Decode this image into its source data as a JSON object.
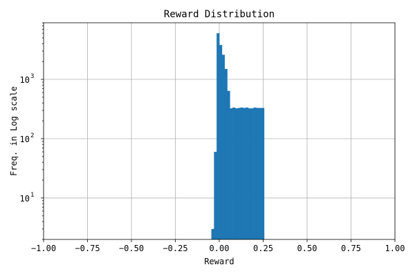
{
  "chart_data": {
    "type": "bar",
    "title": "Reward Distribution",
    "xlabel": "Reward",
    "ylabel": "Freq. in Log scale",
    "xlim": [
      -1.0,
      1.0
    ],
    "ylim": [
      2.0,
      9000
    ],
    "yscale": "log",
    "grid": true,
    "bar_color": "#1f77b4",
    "x_ticks": [
      {
        "value": -1.0,
        "label": "−1.00"
      },
      {
        "value": -0.75,
        "label": "−0.75"
      },
      {
        "value": -0.5,
        "label": "−0.50"
      },
      {
        "value": -0.25,
        "label": "−0.25"
      },
      {
        "value": 0.0,
        "label": "0.00"
      },
      {
        "value": 0.25,
        "label": "0.25"
      },
      {
        "value": 0.5,
        "label": "0.50"
      },
      {
        "value": 0.75,
        "label": "0.75"
      },
      {
        "value": 1.0,
        "label": "1.00"
      }
    ],
    "y_ticks": [
      {
        "value": 10,
        "base": "10",
        "exp": "1"
      },
      {
        "value": 100,
        "base": "10",
        "exp": "2"
      },
      {
        "value": 1000,
        "base": "10",
        "exp": "3"
      }
    ],
    "bins": [
      {
        "x0": -0.045,
        "x1": -0.03,
        "count": 3
      },
      {
        "x0": -0.03,
        "x1": -0.015,
        "count": 60
      },
      {
        "x0": -0.015,
        "x1": 0.0,
        "count": 6000
      },
      {
        "x0": 0.0,
        "x1": 0.015,
        "count": 3800
      },
      {
        "x0": 0.015,
        "x1": 0.03,
        "count": 2600
      },
      {
        "x0": 0.03,
        "x1": 0.045,
        "count": 1500
      },
      {
        "x0": 0.045,
        "x1": 0.06,
        "count": 640
      },
      {
        "x0": 0.06,
        "x1": 0.075,
        "count": 325
      },
      {
        "x0": 0.075,
        "x1": 0.09,
        "count": 335
      },
      {
        "x0": 0.09,
        "x1": 0.105,
        "count": 325
      },
      {
        "x0": 0.105,
        "x1": 0.12,
        "count": 330
      },
      {
        "x0": 0.12,
        "x1": 0.135,
        "count": 335
      },
      {
        "x0": 0.135,
        "x1": 0.15,
        "count": 330
      },
      {
        "x0": 0.15,
        "x1": 0.165,
        "count": 335
      },
      {
        "x0": 0.165,
        "x1": 0.18,
        "count": 325
      },
      {
        "x0": 0.18,
        "x1": 0.195,
        "count": 325
      },
      {
        "x0": 0.195,
        "x1": 0.21,
        "count": 335
      },
      {
        "x0": 0.21,
        "x1": 0.225,
        "count": 330
      },
      {
        "x0": 0.225,
        "x1": 0.24,
        "count": 330
      },
      {
        "x0": 0.24,
        "x1": 0.255,
        "count": 330
      }
    ]
  }
}
